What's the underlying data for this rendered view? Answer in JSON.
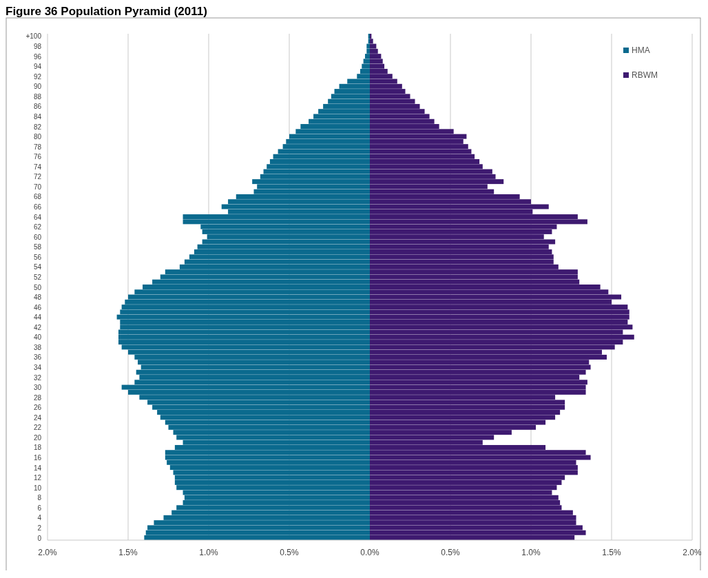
{
  "chart_data": {
    "type": "bar",
    "title": "Figure 36 Population Pyramid (2011)",
    "orientation": "horizontal",
    "stacked": true,
    "categories": [
      "+100",
      null,
      "98",
      null,
      "96",
      null,
      "94",
      null,
      "92",
      null,
      "90",
      null,
      "88",
      null,
      "86",
      null,
      "84",
      null,
      "82",
      null,
      "80",
      null,
      "78",
      null,
      "76",
      null,
      "74",
      null,
      "72",
      null,
      "70",
      null,
      "68",
      null,
      "66",
      null,
      "64",
      null,
      "62",
      null,
      "60",
      null,
      "58",
      null,
      "56",
      null,
      "54",
      null,
      "52",
      null,
      "50",
      null,
      "48",
      null,
      "46",
      null,
      "44",
      null,
      "42",
      null,
      "40",
      null,
      "38",
      null,
      "36",
      null,
      "34",
      null,
      "32",
      null,
      "30",
      null,
      "28",
      null,
      "26",
      null,
      "24",
      null,
      "22",
      null,
      "20",
      null,
      "18",
      null,
      "16",
      null,
      "14",
      null,
      "12",
      null,
      "10",
      null,
      "8",
      null,
      "6",
      null,
      "4",
      null,
      "2",
      null,
      "0"
    ],
    "series": [
      {
        "name": "HMA",
        "color": "#0b6a8e",
        "values": [
          -0.01,
          -0.01,
          -0.02,
          -0.02,
          -0.03,
          -0.04,
          -0.05,
          -0.06,
          -0.08,
          -0.14,
          -0.19,
          -0.22,
          -0.24,
          -0.26,
          -0.29,
          -0.32,
          -0.35,
          -0.38,
          -0.43,
          -0.46,
          -0.5,
          -0.52,
          -0.54,
          -0.57,
          -0.6,
          -0.62,
          -0.64,
          -0.66,
          -0.68,
          -0.73,
          -0.7,
          -0.72,
          -0.83,
          -0.88,
          -0.92,
          -0.88,
          -1.16,
          -1.16,
          -1.05,
          -1.04,
          -1.01,
          -1.04,
          -1.07,
          -1.09,
          -1.12,
          -1.15,
          -1.18,
          -1.27,
          -1.3,
          -1.35,
          -1.41,
          -1.46,
          -1.5,
          -1.52,
          -1.54,
          -1.55,
          -1.57,
          -1.55,
          -1.55,
          -1.56,
          -1.56,
          -1.56,
          -1.54,
          -1.5,
          -1.46,
          -1.44,
          -1.42,
          -1.45,
          -1.43,
          -1.46,
          -1.54,
          -1.5,
          -1.43,
          -1.38,
          -1.35,
          -1.32,
          -1.3,
          -1.27,
          -1.25,
          -1.22,
          -1.2,
          -1.16,
          -1.21,
          -1.27,
          -1.27,
          -1.26,
          -1.24,
          -1.22,
          -1.21,
          -1.21,
          -1.2,
          -1.16,
          -1.15,
          -1.16,
          -1.2,
          -1.23,
          -1.28,
          -1.34,
          -1.38,
          -1.39,
          -1.4
        ]
      },
      {
        "name": "RBWM",
        "color": "#3e1a70",
        "values": [
          0.01,
          0.02,
          0.04,
          0.05,
          0.07,
          0.08,
          0.09,
          0.11,
          0.14,
          0.17,
          0.2,
          0.22,
          0.25,
          0.28,
          0.31,
          0.34,
          0.37,
          0.4,
          0.43,
          0.52,
          0.6,
          0.58,
          0.61,
          0.63,
          0.65,
          0.68,
          0.7,
          0.76,
          0.78,
          0.83,
          0.73,
          0.77,
          0.93,
          1.0,
          1.11,
          1.01,
          1.29,
          1.35,
          1.16,
          1.13,
          1.08,
          1.15,
          1.11,
          1.13,
          1.14,
          1.14,
          1.17,
          1.29,
          1.29,
          1.3,
          1.43,
          1.48,
          1.56,
          1.5,
          1.6,
          1.61,
          1.61,
          1.6,
          1.63,
          1.57,
          1.64,
          1.57,
          1.52,
          1.44,
          1.47,
          1.36,
          1.37,
          1.34,
          1.3,
          1.35,
          1.34,
          1.34,
          1.15,
          1.21,
          1.21,
          1.18,
          1.15,
          1.09,
          1.03,
          0.88,
          0.77,
          0.7,
          1.09,
          1.34,
          1.37,
          1.28,
          1.29,
          1.29,
          1.21,
          1.19,
          1.16,
          1.13,
          1.17,
          1.18,
          1.19,
          1.26,
          1.28,
          1.28,
          1.32,
          1.34,
          1.27
        ]
      }
    ],
    "xlim": [
      -2,
      2
    ],
    "xticks": [
      {
        "value": -2,
        "label": "2.0%"
      },
      {
        "value": -1.5,
        "label": "1.5%"
      },
      {
        "value": -1,
        "label": "1.0%"
      },
      {
        "value": -0.5,
        "label": "0.5%"
      },
      {
        "value": 0,
        "label": "0.0%"
      },
      {
        "value": 0.5,
        "label": "0.5%"
      },
      {
        "value": 1,
        "label": "1.0%"
      },
      {
        "value": 1.5,
        "label": "1.5%"
      },
      {
        "value": 2,
        "label": "2.0%"
      }
    ],
    "grid": "x",
    "legend": "top right"
  }
}
